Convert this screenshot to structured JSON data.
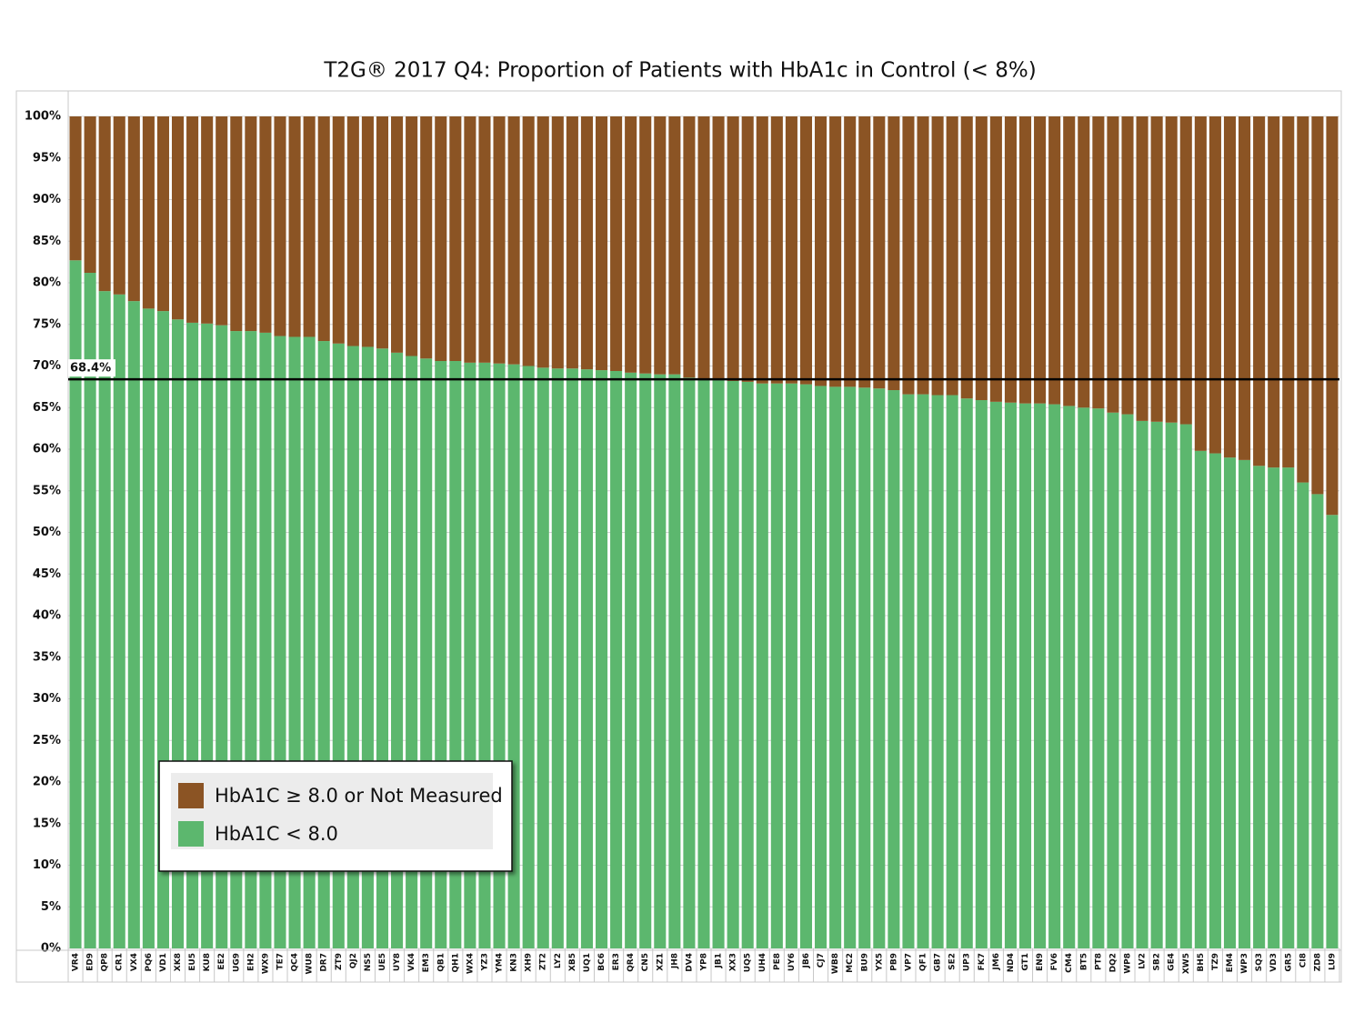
{
  "chart_data": {
    "type": "stacked_bar",
    "title": "T2G® 2017 Q4: Proportion of Patients with HbA1c in Control (< 8%)",
    "categories": [
      "VR4",
      "ED9",
      "QP8",
      "CR1",
      "VX4",
      "PQ6",
      "VD1",
      "XK8",
      "EU5",
      "KU8",
      "EE2",
      "UG9",
      "EH2",
      "WX9",
      "TE7",
      "QC4",
      "WU8",
      "DR7",
      "ZT9",
      "QJ2",
      "NS5",
      "UE5",
      "UY8",
      "VK4",
      "EM3",
      "QB1",
      "QH1",
      "WX4",
      "YZ3",
      "YM4",
      "KN3",
      "XH9",
      "ZT2",
      "LY2",
      "XB5",
      "UQ1",
      "BC6",
      "ER3",
      "QR4",
      "CN5",
      "XZ1",
      "JH8",
      "DV4",
      "YP8",
      "JB1",
      "XX3",
      "UQ5",
      "UH4",
      "PE8",
      "UY6",
      "JB6",
      "CJ7",
      "WB8",
      "MC2",
      "BU9",
      "YX5",
      "PB9",
      "VP7",
      "QF1",
      "GB7",
      "SE2",
      "UP3",
      "FK7",
      "JM6",
      "ND4",
      "GT1",
      "EN9",
      "FV6",
      "CM4",
      "BT5",
      "PT8",
      "DQ2",
      "WP8",
      "LV2",
      "SB2",
      "GE4",
      "XW5",
      "BH5",
      "TZ9",
      "EM4",
      "WP3",
      "SQ3",
      "VD3",
      "GR5",
      "CI8",
      "ZD8",
      "LU9"
    ],
    "series": [
      {
        "name": "HbA1C ≥ 8.0 or Not Measured",
        "color": "#8b5424",
        "values": [
          17.3,
          18.8,
          21.0,
          21.4,
          22.2,
          23.1,
          23.4,
          24.4,
          24.8,
          24.9,
          25.1,
          25.8,
          25.8,
          26.0,
          26.4,
          26.5,
          26.5,
          27.0,
          27.3,
          27.6,
          27.7,
          27.9,
          28.4,
          28.8,
          29.1,
          29.4,
          29.4,
          29.6,
          29.6,
          29.7,
          29.8,
          30.0,
          30.2,
          30.3,
          30.3,
          30.4,
          30.5,
          30.6,
          30.8,
          30.9,
          31.0,
          31.0,
          31.4,
          31.5,
          31.7,
          31.8,
          31.9,
          32.1,
          32.1,
          32.1,
          32.2,
          32.4,
          32.5,
          32.5,
          32.6,
          32.7,
          32.9,
          33.4,
          33.4,
          33.5,
          33.5,
          33.9,
          34.1,
          34.3,
          34.4,
          34.5,
          34.5,
          34.6,
          34.8,
          35.0,
          35.1,
          35.6,
          35.8,
          36.6,
          36.7,
          36.8,
          37.0,
          40.2,
          40.5,
          41.0,
          41.3,
          42.0,
          42.2,
          42.2,
          44.0,
          45.4,
          47.9
        ]
      },
      {
        "name": "HbA1C < 8.0",
        "color": "#5cb76e",
        "values": [
          82.7,
          81.2,
          79.0,
          78.6,
          77.8,
          76.9,
          76.6,
          75.6,
          75.2,
          75.1,
          74.9,
          74.2,
          74.2,
          74.0,
          73.6,
          73.5,
          73.5,
          73.0,
          72.7,
          72.4,
          72.3,
          72.1,
          71.6,
          71.2,
          70.9,
          70.6,
          70.6,
          70.4,
          70.4,
          70.3,
          70.2,
          70.0,
          69.8,
          69.7,
          69.7,
          69.6,
          69.5,
          69.4,
          69.2,
          69.1,
          69.0,
          69.0,
          68.6,
          68.5,
          68.3,
          68.2,
          68.1,
          67.9,
          67.9,
          67.9,
          67.8,
          67.6,
          67.5,
          67.5,
          67.4,
          67.3,
          67.1,
          66.6,
          66.6,
          66.5,
          66.5,
          66.1,
          65.9,
          65.7,
          65.6,
          65.5,
          65.5,
          65.4,
          65.2,
          65.0,
          64.9,
          64.4,
          64.2,
          63.4,
          63.3,
          63.2,
          63.0,
          59.8,
          59.5,
          59.0,
          58.7,
          58.0,
          57.8,
          57.8,
          56.0,
          54.6,
          52.1
        ]
      }
    ],
    "ylim": [
      0,
      100
    ],
    "yticks": [
      {
        "value": 0,
        "label": "0%"
      },
      {
        "value": 5,
        "label": "5%"
      },
      {
        "value": 10,
        "label": "10%"
      },
      {
        "value": 15,
        "label": "15%"
      },
      {
        "value": 20,
        "label": "20%"
      },
      {
        "value": 25,
        "label": "25%"
      },
      {
        "value": 30,
        "label": "30%"
      },
      {
        "value": 35,
        "label": "35%"
      },
      {
        "value": 40,
        "label": "40%"
      },
      {
        "value": 45,
        "label": "45%"
      },
      {
        "value": 50,
        "label": "50%"
      },
      {
        "value": 55,
        "label": "55%"
      },
      {
        "value": 60,
        "label": "60%"
      },
      {
        "value": 65,
        "label": "65%"
      },
      {
        "value": 70,
        "label": "70%"
      },
      {
        "value": 75,
        "label": "75%"
      },
      {
        "value": 80,
        "label": "80%"
      },
      {
        "value": 85,
        "label": "85%"
      },
      {
        "value": 90,
        "label": "90%"
      },
      {
        "value": 95,
        "label": "95%"
      },
      {
        "value": 100,
        "label": "100%"
      }
    ],
    "grid": true,
    "reference_line": {
      "value": 68.4,
      "label": "68.4%"
    }
  }
}
